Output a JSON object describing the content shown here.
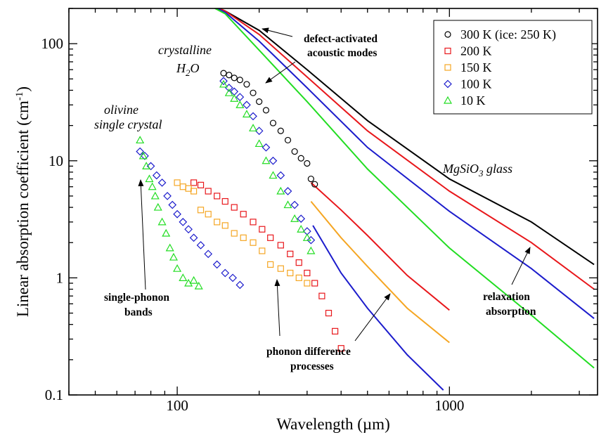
{
  "chart_data": {
    "type": "scatter",
    "xlabel": "Wavelength (µm)",
    "ylabel": "Linear absorption coefficient (cm",
    "ylabel_sup": "-1",
    "ylabel_close": ")",
    "xscale": "log",
    "yscale": "log",
    "xlim": [
      40,
      3500
    ],
    "ylim": [
      0.1,
      200
    ],
    "x_ticks": [
      100,
      1000
    ],
    "y_ticks": [
      0.1,
      1,
      10,
      100
    ],
    "x_tick_labels": [
      "100",
      "1000"
    ],
    "y_tick_labels": [
      "0.1",
      "1",
      "10",
      "100"
    ],
    "legend": {
      "placement": "top-right",
      "entries": [
        {
          "label": "300 K (ice: 250 K)",
          "color": "#000000",
          "marker": "circle"
        },
        {
          "label": "200 K",
          "color": "#e8171b",
          "marker": "square"
        },
        {
          "label": "150 K",
          "color": "#f5a623",
          "marker": "square"
        },
        {
          "label": "100 K",
          "color": "#1c1ccc",
          "marker": "diamond"
        },
        {
          "label": "10 K",
          "color": "#22dd22",
          "marker": "triangle"
        }
      ]
    },
    "glass_lines": [
      {
        "temp": "300 K",
        "color": "#000000",
        "x": [
          115,
          150,
          200,
          300,
          500,
          1000,
          2000,
          3400
        ],
        "y": [
          250,
          190,
          130,
          60,
          22,
          7,
          3,
          1.3
        ]
      },
      {
        "temp": "200 K",
        "color": "#e8171b",
        "x": [
          115,
          150,
          200,
          300,
          500,
          1000,
          2000,
          3400
        ],
        "y": [
          250,
          190,
          120,
          52,
          18,
          5.5,
          2.0,
          0.8
        ]
      },
      {
        "temp": "100 K",
        "color": "#1c1ccc",
        "x": [
          115,
          150,
          200,
          300,
          500,
          1000,
          2000,
          3400
        ],
        "y": [
          250,
          185,
          105,
          42,
          13,
          3.7,
          1.2,
          0.45
        ]
      },
      {
        "temp": "10 K",
        "color": "#22dd22",
        "x": [
          115,
          150,
          200,
          300,
          500,
          1000,
          2000,
          3400
        ],
        "y": [
          250,
          180,
          88,
          32,
          8.5,
          1.8,
          0.48,
          0.17
        ]
      }
    ],
    "ice_tail_lines": [
      {
        "temp": "200 K",
        "color": "#e8171b",
        "x": [
          310,
          400,
          500,
          700,
          1000
        ],
        "y": [
          6.5,
          3.8,
          2.3,
          1.05,
          0.53
        ]
      },
      {
        "temp": "150 K",
        "color": "#f5a623",
        "x": [
          310,
          400,
          500,
          700,
          1000
        ],
        "y": [
          4.5,
          2.2,
          1.25,
          0.55,
          0.28
        ]
      },
      {
        "temp": "100 K",
        "color": "#1c1ccc",
        "x": [
          315,
          400,
          500,
          700,
          950
        ],
        "y": [
          2.8,
          1.1,
          0.55,
          0.22,
          0.11
        ]
      }
    ],
    "scatter_series": [
      {
        "name": "ice 300 K",
        "color": "#000000",
        "marker": "circle",
        "x": [
          148,
          155,
          162,
          170,
          180,
          190,
          200,
          212,
          225,
          240,
          255,
          270,
          285,
          300,
          310,
          320
        ],
        "y": [
          56,
          54,
          51,
          49,
          45,
          38,
          32,
          27,
          21,
          18,
          15,
          12,
          10.5,
          9.5,
          7,
          6.3
        ]
      },
      {
        "name": "ice 100 K",
        "color": "#1c1ccc",
        "marker": "diamond",
        "x": [
          148,
          155,
          162,
          170,
          180,
          190,
          200,
          212,
          225,
          240,
          255,
          270,
          285,
          300,
          310
        ],
        "y": [
          48,
          42,
          39,
          35,
          30,
          24,
          18,
          13,
          10,
          7.5,
          5.5,
          4.2,
          3.2,
          2.5,
          2.1
        ]
      },
      {
        "name": "ice 10 K",
        "color": "#22dd22",
        "marker": "triangle",
        "x": [
          148,
          155,
          162,
          170,
          180,
          190,
          200,
          212,
          225,
          240,
          255,
          270,
          285,
          300,
          310
        ],
        "y": [
          45,
          38,
          34,
          30,
          25,
          19,
          14,
          10,
          7.5,
          5.5,
          4.2,
          3.2,
          2.6,
          2.2,
          1.7
        ]
      },
      {
        "name": "glass 200 K",
        "color": "#e8171b",
        "marker": "square",
        "x": [
          115,
          122,
          130,
          140,
          150,
          162,
          175,
          190,
          205,
          220,
          240,
          260,
          280,
          300,
          320,
          340,
          360,
          380,
          400
        ],
        "y": [
          6.5,
          6.2,
          5.5,
          5,
          4.5,
          4,
          3.5,
          3,
          2.6,
          2.2,
          1.9,
          1.6,
          1.35,
          1.1,
          0.9,
          0.7,
          0.5,
          0.35,
          0.25
        ]
      },
      {
        "name": "glass 150 K",
        "color": "#f5a623",
        "marker": "square",
        "x": [
          100,
          105,
          110,
          115,
          122,
          130,
          140,
          150,
          162,
          175,
          190,
          205,
          220,
          240,
          260,
          280,
          300
        ],
        "y": [
          6.5,
          6,
          5.8,
          5.5,
          3.8,
          3.5,
          3,
          2.8,
          2.4,
          2.2,
          2,
          1.7,
          1.3,
          1.2,
          1.1,
          1,
          0.9
        ]
      },
      {
        "name": "olivine 100 K",
        "color": "#1c1ccc",
        "marker": "diamond",
        "x": [
          73,
          76,
          80,
          84,
          88,
          92,
          96,
          100,
          105,
          110,
          115,
          122,
          130,
          140,
          150,
          160,
          170
        ],
        "y": [
          12,
          11,
          9,
          7.5,
          6.5,
          5,
          4.2,
          3.5,
          3,
          2.6,
          2.2,
          1.9,
          1.6,
          1.3,
          1.1,
          1,
          0.87
        ]
      },
      {
        "name": "olivine 10 K",
        "color": "#22dd22",
        "marker": "triangle",
        "x": [
          73,
          75,
          77,
          79,
          81,
          83,
          85,
          88,
          91,
          94,
          97,
          100,
          105,
          110,
          115,
          120
        ],
        "y": [
          15,
          11,
          9,
          7,
          6,
          5,
          4,
          3,
          2.4,
          1.8,
          1.5,
          1.2,
          1,
          0.9,
          0.95,
          0.85
        ]
      }
    ],
    "annotations": {
      "defect_1": "defect-activated",
      "defect_2": "acoustic modes",
      "crystalline": "crystalline",
      "h2o_h": "H",
      "h2o_2": "2",
      "h2o_o": "O",
      "olivine_1": "olivine",
      "olivine_2": "single crystal",
      "mgsio_1": "MgSiO",
      "mgsio_3": "3",
      "mgsio_2": " glass",
      "single_1": "single-phonon",
      "single_2": "bands",
      "phonon_1": "phonon difference",
      "phonon_2": "processes",
      "relax_1": "relaxation",
      "relax_2": "absorption"
    }
  }
}
